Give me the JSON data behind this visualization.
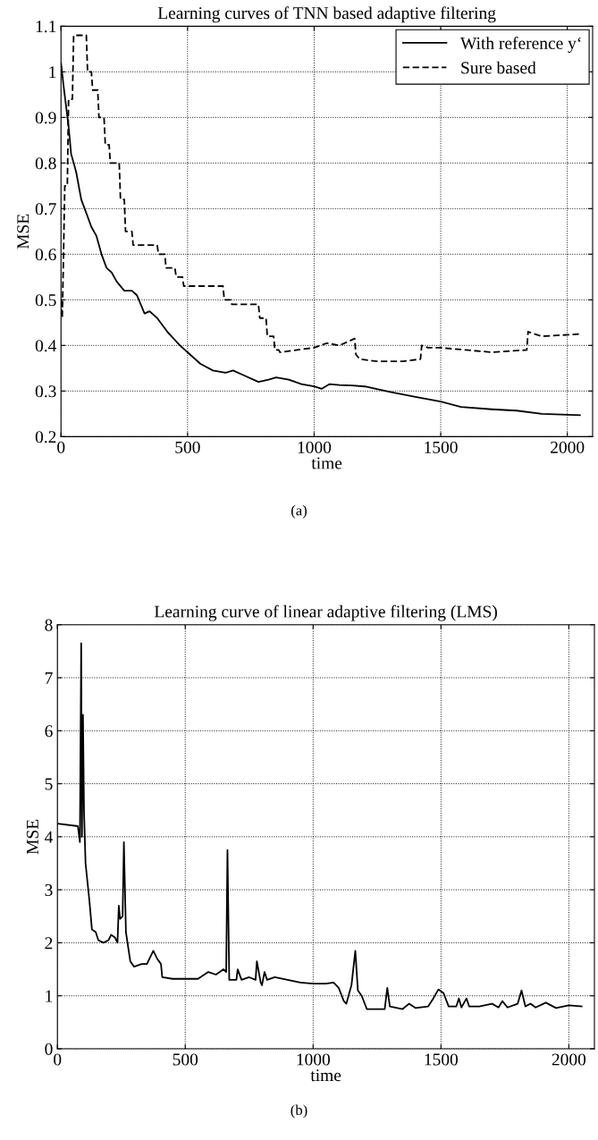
{
  "chart_data": [
    {
      "type": "line",
      "title": "Learning curves of TNN based adaptive filtering",
      "xlabel": "time",
      "ylabel": "MSE",
      "xlim": [
        0,
        2100
      ],
      "ylim": [
        0.2,
        1.1
      ],
      "xticks": [
        0,
        500,
        1000,
        1500,
        2000
      ],
      "yticks": [
        0.2,
        0.3,
        0.4,
        0.5,
        0.6,
        0.7,
        0.8,
        0.9,
        1,
        1.1
      ],
      "grid": true,
      "legend": "top right",
      "annotations": [
        "(a)"
      ],
      "series": [
        {
          "name": "With reference y‘",
          "color": "#000000",
          "line_style": "solid",
          "x": [
            0,
            10,
            30,
            40,
            50,
            60,
            80,
            100,
            120,
            140,
            160,
            180,
            200,
            220,
            250,
            280,
            300,
            330,
            350,
            380,
            420,
            470,
            500,
            550,
            600,
            650,
            680,
            720,
            780,
            820,
            850,
            900,
            950,
            1000,
            1030,
            1060,
            1100,
            1150,
            1200,
            1300,
            1400,
            1500,
            1580,
            1700,
            1800,
            1900,
            2050
          ],
          "values": [
            1.02,
            0.97,
            0.88,
            0.82,
            0.8,
            0.78,
            0.72,
            0.69,
            0.66,
            0.64,
            0.6,
            0.57,
            0.56,
            0.54,
            0.52,
            0.52,
            0.51,
            0.47,
            0.475,
            0.46,
            0.43,
            0.4,
            0.385,
            0.36,
            0.345,
            0.34,
            0.345,
            0.335,
            0.32,
            0.325,
            0.33,
            0.325,
            0.315,
            0.31,
            0.305,
            0.315,
            0.313,
            0.312,
            0.31,
            0.298,
            0.287,
            0.277,
            0.265,
            0.26,
            0.257,
            0.25,
            0.247
          ]
        },
        {
          "name": "Sure based",
          "color": "#000000",
          "line_style": "dashed",
          "x": [
            0,
            5,
            10,
            15,
            25,
            30,
            45,
            50,
            100,
            105,
            120,
            125,
            145,
            150,
            170,
            175,
            190,
            195,
            230,
            235,
            250,
            255,
            280,
            285,
            310,
            315,
            380,
            385,
            410,
            415,
            450,
            455,
            480,
            485,
            640,
            645,
            670,
            675,
            780,
            785,
            810,
            815,
            840,
            845,
            860,
            865,
            1000,
            1050,
            1100,
            1160,
            1165,
            1180,
            1250,
            1350,
            1420,
            1425,
            1450,
            1500,
            1600,
            1700,
            1840,
            1845,
            1900,
            2050
          ],
          "values": [
            0.5,
            0.46,
            0.6,
            0.75,
            0.75,
            0.94,
            0.94,
            1.08,
            1.08,
            1.0,
            1.0,
            0.96,
            0.96,
            0.9,
            0.9,
            0.84,
            0.84,
            0.8,
            0.8,
            0.72,
            0.72,
            0.65,
            0.65,
            0.62,
            0.62,
            0.62,
            0.62,
            0.6,
            0.6,
            0.57,
            0.57,
            0.55,
            0.55,
            0.53,
            0.53,
            0.5,
            0.5,
            0.49,
            0.49,
            0.46,
            0.46,
            0.42,
            0.42,
            0.39,
            0.39,
            0.385,
            0.395,
            0.405,
            0.4,
            0.415,
            0.38,
            0.37,
            0.365,
            0.365,
            0.37,
            0.4,
            0.395,
            0.395,
            0.39,
            0.385,
            0.39,
            0.43,
            0.42,
            0.425
          ]
        }
      ]
    },
    {
      "type": "line",
      "title": "Learning curve of linear adaptive filtering (LMS)",
      "xlabel": "time",
      "ylabel": "MSE",
      "xlim": [
        0,
        2100
      ],
      "ylim": [
        0,
        8
      ],
      "xticks": [
        0,
        500,
        1000,
        1500,
        2000
      ],
      "yticks": [
        0,
        1,
        2,
        3,
        4,
        5,
        6,
        7,
        8
      ],
      "grid": true,
      "annotations": [
        "(b)"
      ],
      "series": [
        {
          "color": "#000000",
          "line_style": "solid",
          "x": [
            0,
            80,
            88,
            93,
            96,
            100,
            104,
            110,
            125,
            135,
            150,
            160,
            180,
            200,
            210,
            225,
            235,
            240,
            245,
            255,
            260,
            268,
            285,
            300,
            330,
            350,
            375,
            390,
            405,
            410,
            450,
            550,
            590,
            620,
            650,
            660,
            665,
            672,
            700,
            705,
            720,
            750,
            775,
            780,
            795,
            800,
            810,
            820,
            850,
            900,
            950,
            1000,
            1050,
            1080,
            1100,
            1120,
            1130,
            1150,
            1165,
            1175,
            1190,
            1210,
            1250,
            1280,
            1290,
            1300,
            1350,
            1375,
            1400,
            1450,
            1470,
            1490,
            1510,
            1530,
            1560,
            1570,
            1580,
            1600,
            1610,
            1650,
            1700,
            1725,
            1740,
            1760,
            1800,
            1815,
            1830,
            1850,
            1870,
            1910,
            1950,
            2000,
            2050
          ],
          "values": [
            4.25,
            4.2,
            3.9,
            7.65,
            4.0,
            6.3,
            4.5,
            3.5,
            2.8,
            2.25,
            2.2,
            2.05,
            2.0,
            2.05,
            2.15,
            2.1,
            2.0,
            2.7,
            2.45,
            2.5,
            3.9,
            2.2,
            1.65,
            1.55,
            1.6,
            1.6,
            1.85,
            1.7,
            1.6,
            1.35,
            1.32,
            1.32,
            1.45,
            1.4,
            1.5,
            1.45,
            3.75,
            1.3,
            1.3,
            1.5,
            1.3,
            1.35,
            1.3,
            1.65,
            1.25,
            1.2,
            1.45,
            1.3,
            1.35,
            1.3,
            1.25,
            1.23,
            1.23,
            1.25,
            1.15,
            0.9,
            0.85,
            1.2,
            1.85,
            1.1,
            1.0,
            0.75,
            0.75,
            0.75,
            1.15,
            0.8,
            0.75,
            0.85,
            0.77,
            0.8,
            0.95,
            1.12,
            1.05,
            0.8,
            0.8,
            0.95,
            0.78,
            0.95,
            0.8,
            0.8,
            0.85,
            0.78,
            0.9,
            0.78,
            0.85,
            1.1,
            0.8,
            0.85,
            0.78,
            0.87,
            0.77,
            0.82,
            0.8
          ]
        }
      ]
    }
  ]
}
